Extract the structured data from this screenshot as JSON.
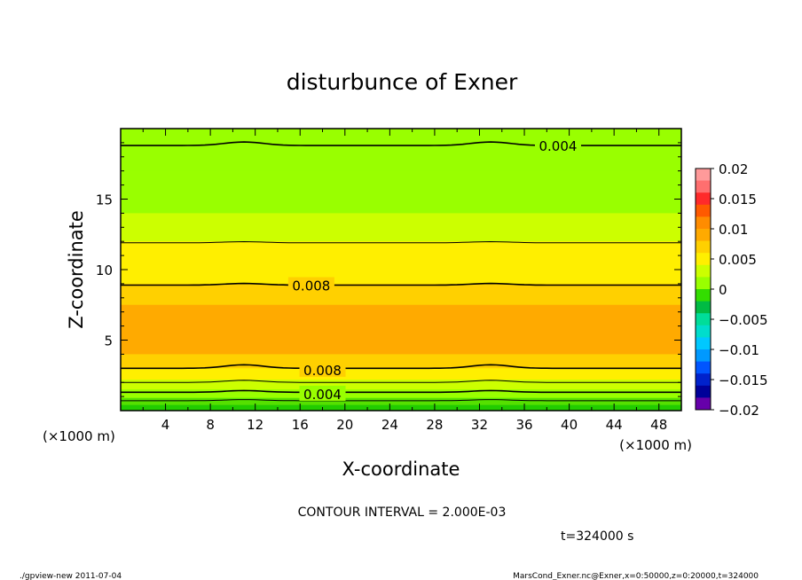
{
  "chart_data": {
    "type": "contour",
    "title": "disturbunce of Exner",
    "xlabel": "X-coordinate",
    "ylabel": "Z-coordinate",
    "x_unit_left": "(×1000 m)",
    "x_unit_right": "(×1000 m)",
    "xlim": [
      0,
      50
    ],
    "ylim": [
      0,
      20
    ],
    "x_ticks": [
      "4",
      "8",
      "12",
      "16",
      "20",
      "24",
      "28",
      "32",
      "36",
      "40",
      "44",
      "48"
    ],
    "y_ticks": [
      "5",
      "10",
      "15"
    ],
    "contour_labels": [
      "0.004",
      "0.008",
      "0.008",
      "0.004"
    ],
    "contour_interval": "CONTOUR INTERVAL = 2.000E-03",
    "time_label": "t=324000 s",
    "colorbar": {
      "labels": [
        "0.02",
        "0.015",
        "0.01",
        "0.005",
        "0",
        "−0.005",
        "−0.01",
        "−0.015",
        "−0.02"
      ],
      "colors": [
        "#ff9a9a",
        "#ff6f6f",
        "#ff2a2a",
        "#ff5a00",
        "#ff8c00",
        "#ffaa00",
        "#ffd000",
        "#ffef00",
        "#ccff00",
        "#99ff00",
        "#33dd00",
        "#00bb44",
        "#00dd99",
        "#00ddcc",
        "#00c8ff",
        "#0099ff",
        "#0055ff",
        "#0022cc",
        "#000099",
        "#6600aa"
      ]
    },
    "bands": [
      {
        "z_top": 0.4,
        "color": "#22cc00"
      },
      {
        "z_top": 0.9,
        "color": "#55e000"
      },
      {
        "z_top": 1.5,
        "color": "#99ff00"
      },
      {
        "z_top": 2.2,
        "color": "#ccff00"
      },
      {
        "z_top": 3.0,
        "color": "#ffef00"
      },
      {
        "z_top": 4.0,
        "color": "#ffd000"
      },
      {
        "z_top": 7.5,
        "color": "#ffaa00"
      },
      {
        "z_top": 9.0,
        "color": "#ffd000"
      },
      {
        "z_top": 10.5,
        "color": "#ffef00"
      },
      {
        "z_top": 12.0,
        "color": "#ffef00"
      },
      {
        "z_top": 14.0,
        "color": "#ccff00"
      },
      {
        "z_top": 17.0,
        "color": "#99ff00"
      },
      {
        "z_top": 20.0,
        "color": "#99ff00"
      }
    ]
  },
  "footer": {
    "left": "./gpview-new   2011-07-04",
    "right": "MarsCond_Exner.nc@Exner,x=0:50000,z=0:20000,t=324000"
  }
}
